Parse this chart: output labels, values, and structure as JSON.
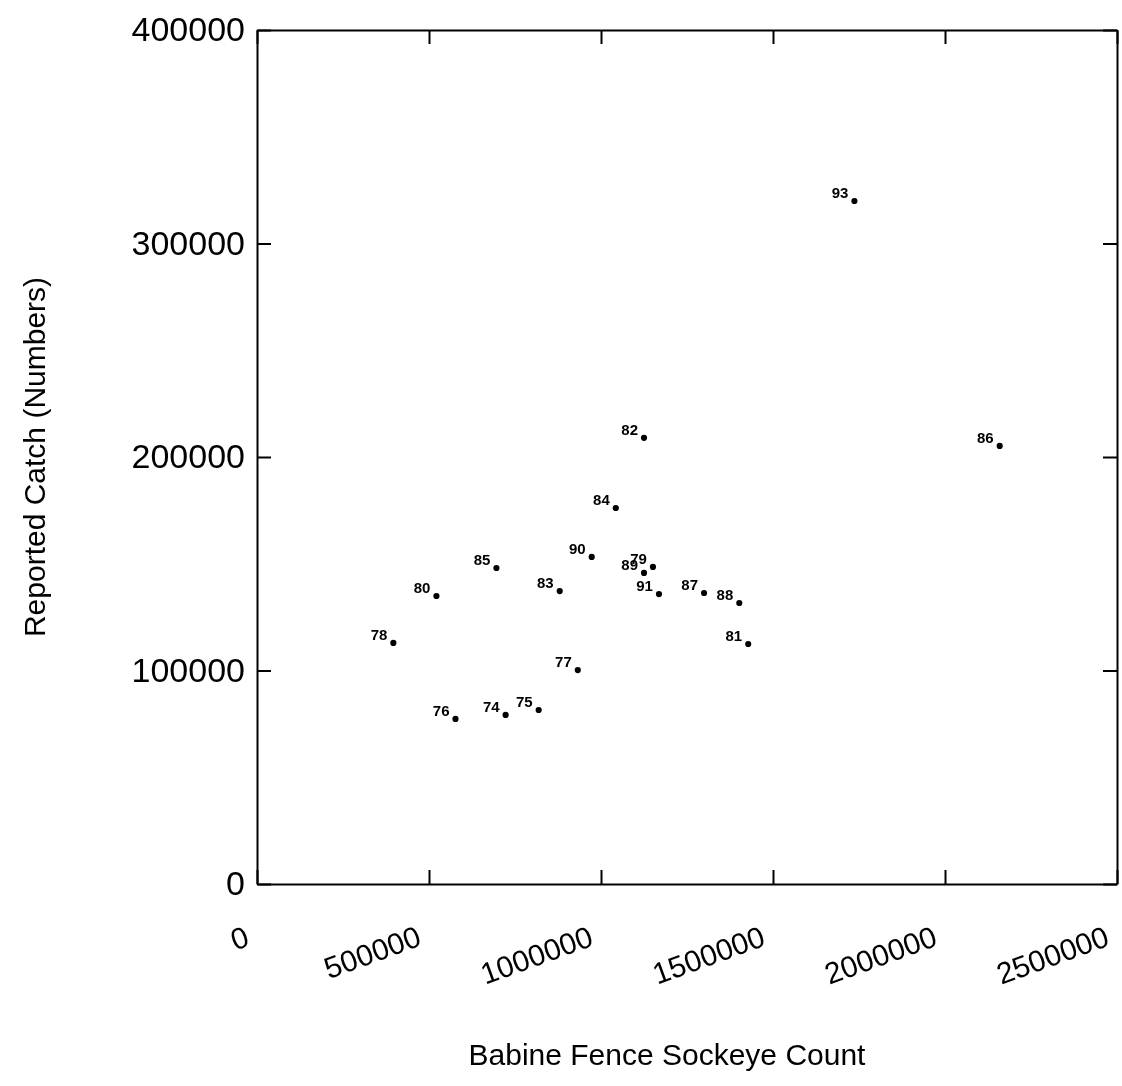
{
  "chart_data": {
    "type": "scatter",
    "xlabel": "Babine Fence Sockeye Count",
    "ylabel": "Reported Catch (Numbers)",
    "xlim": [
      0,
      2500000
    ],
    "xticks": [
      0,
      500000,
      1000000,
      1500000,
      2000000,
      2500000
    ],
    "ylim": [
      0,
      400000
    ],
    "yticks": [
      0,
      100000,
      200000,
      300000,
      400000
    ],
    "grid": false,
    "marker": "circle",
    "series": [
      {
        "color": "#000000",
        "x": [
          722700,
          818800,
          577000,
          932500,
          396300,
          1151000,
          521600,
          1427900,
          1125000,
          880000,
          1043000,
          696000,
          2159000,
          1299600,
          1402000,
          1125000,
          973000,
          1168500,
          1736700
        ],
        "values": [
          79200,
          81500,
          77300,
          100200,
          112900,
          148500,
          134900,
          112400,
          209000,
          137200,
          176100,
          148000,
          205200,
          136300,
          131600,
          145700,
          153200,
          135800,
          319900
        ]
      }
    ],
    "annotations": [
      {
        "text": "74",
        "x": 722700,
        "y": 79200
      },
      {
        "text": "75",
        "x": 818800,
        "y": 81500
      },
      {
        "text": "76",
        "x": 577000,
        "y": 77300
      },
      {
        "text": "77",
        "x": 932500,
        "y": 100200
      },
      {
        "text": "78",
        "x": 396300,
        "y": 112900
      },
      {
        "text": "79",
        "x": 1151000,
        "y": 148500
      },
      {
        "text": "80",
        "x": 521600,
        "y": 134900
      },
      {
        "text": "81",
        "x": 1427900,
        "y": 112400
      },
      {
        "text": "82",
        "x": 1125000,
        "y": 209000
      },
      {
        "text": "83",
        "x": 880000,
        "y": 137200
      },
      {
        "text": "84",
        "x": 1043000,
        "y": 176100
      },
      {
        "text": "85",
        "x": 696000,
        "y": 148000
      },
      {
        "text": "86",
        "x": 2159000,
        "y": 205200
      },
      {
        "text": "87",
        "x": 1299600,
        "y": 136300
      },
      {
        "text": "88",
        "x": 1402000,
        "y": 131600
      },
      {
        "text": "89",
        "x": 1125000,
        "y": 145700
      },
      {
        "text": "90",
        "x": 973000,
        "y": 153200
      },
      {
        "text": "91",
        "x": 1168500,
        "y": 135800
      },
      {
        "text": "93",
        "x": 1736700,
        "y": 319900
      }
    ]
  }
}
